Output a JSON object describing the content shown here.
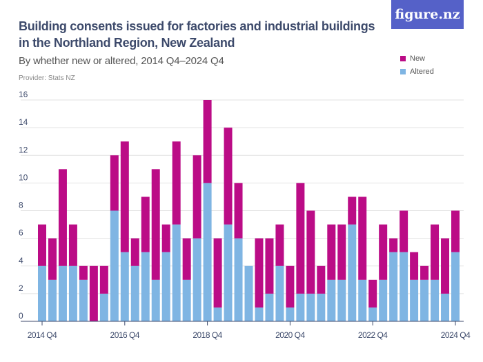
{
  "header": {
    "title": "Building consents issued for factories and industrial buildings in the Northland Region, New Zealand",
    "subtitle": "By whether new or altered, 2014 Q4–2024 Q4",
    "provider": "Provider: Stats NZ",
    "logo": "figure.nz"
  },
  "chart_data": {
    "type": "bar",
    "stacked": true,
    "categories": [
      "2014 Q4",
      "2015 Q1",
      "2015 Q2",
      "2015 Q3",
      "2015 Q4",
      "2016 Q1",
      "2016 Q2",
      "2016 Q3",
      "2016 Q4",
      "2017 Q1",
      "2017 Q2",
      "2017 Q3",
      "2017 Q4",
      "2018 Q1",
      "2018 Q2",
      "2018 Q3",
      "2018 Q4",
      "2019 Q1",
      "2019 Q2",
      "2019 Q3",
      "2019 Q4",
      "2020 Q1",
      "2020 Q2",
      "2020 Q3",
      "2020 Q4",
      "2021 Q1",
      "2021 Q2",
      "2021 Q3",
      "2021 Q4",
      "2022 Q1",
      "2022 Q2",
      "2022 Q3",
      "2022 Q4",
      "2023 Q1",
      "2023 Q2",
      "2023 Q3",
      "2023 Q4",
      "2024 Q1",
      "2024 Q2",
      "2024 Q3",
      "2024 Q4"
    ],
    "series": [
      {
        "name": "Altered",
        "color": "#7fb5e3",
        "values": [
          4,
          3,
          4,
          4,
          3,
          0,
          2,
          8,
          5,
          4,
          5,
          3,
          5,
          7,
          3,
          6,
          10,
          1,
          7,
          6,
          4,
          1,
          2,
          4,
          1,
          2,
          2,
          2,
          3,
          3,
          7,
          3,
          1,
          3,
          5,
          5,
          3,
          3,
          3,
          2,
          5
        ]
      },
      {
        "name": "New",
        "color": "#bb0c86",
        "values": [
          3,
          3,
          7,
          3,
          1,
          4,
          2,
          4,
          8,
          2,
          4,
          8,
          2,
          6,
          3,
          6,
          6,
          5,
          7,
          4,
          0,
          5,
          4,
          3,
          3,
          8,
          6,
          2,
          4,
          4,
          2,
          6,
          2,
          4,
          1,
          3,
          2,
          1,
          4,
          4,
          3
        ]
      }
    ],
    "x_tick_labels": [
      "2014 Q4",
      "2016 Q4",
      "2018 Q4",
      "2020 Q4",
      "2022 Q4",
      "2024 Q4"
    ],
    "y_ticks": [
      0,
      2,
      4,
      6,
      8,
      10,
      12,
      14,
      16
    ],
    "ylim": [
      0,
      16
    ],
    "grid": true,
    "legend_position": "top-right"
  }
}
